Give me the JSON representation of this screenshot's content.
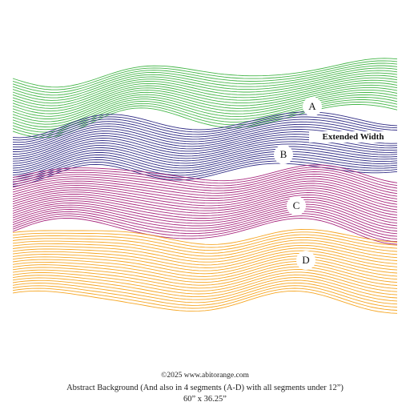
{
  "colors": {
    "segment_a": "#45b649",
    "segment_b": "#2e2a84",
    "segment_c": "#a8287e",
    "segment_d": "#f6a623"
  },
  "segments": [
    {
      "label": "A"
    },
    {
      "label": "B"
    },
    {
      "label": "C"
    },
    {
      "label": "D"
    }
  ],
  "extended_width_label": "Extended Width",
  "caption": {
    "copyright": "©2025 www.abitorange.com",
    "description": "Abstract Background (And also in 4 segments (A-D) with all segments under 12”)",
    "dimensions": "60” x 36.25”"
  }
}
